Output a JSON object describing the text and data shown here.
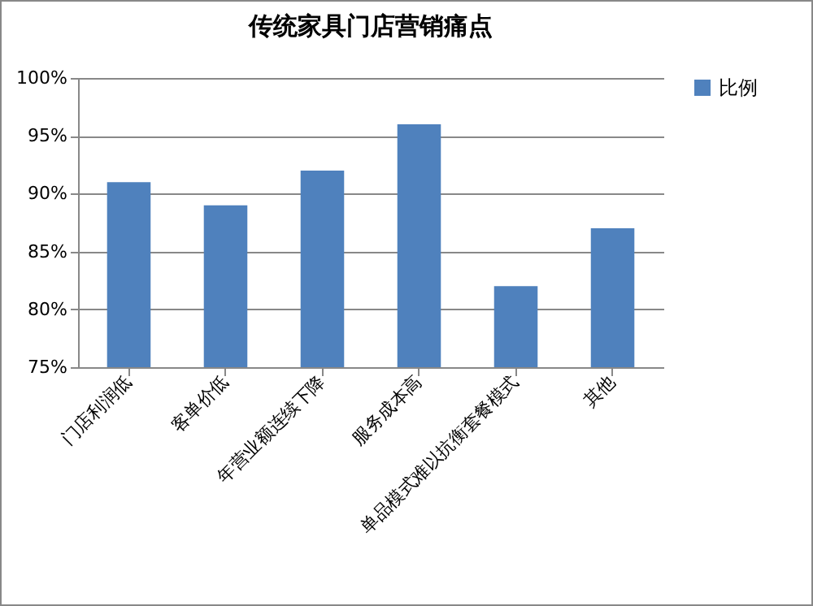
{
  "chart_data": {
    "type": "bar",
    "title": "传统家具门店营销痛点",
    "categories": [
      "门店利润低",
      "客单价低",
      "年营业额连续下降",
      "服务成本高",
      "单品模式难以抗衡套餐模式",
      "其他"
    ],
    "series": [
      {
        "name": "比例",
        "color": "#4f81bd",
        "values": [
          91,
          89,
          92,
          96,
          82,
          87
        ]
      }
    ],
    "ylim": [
      75,
      100
    ],
    "yticks": [
      {
        "value": 75,
        "label": "75%"
      },
      {
        "value": 80,
        "label": "80%"
      },
      {
        "value": 85,
        "label": "85%"
      },
      {
        "value": 90,
        "label": "90%"
      },
      {
        "value": 95,
        "label": "95%"
      },
      {
        "value": 100,
        "label": "100%"
      }
    ],
    "grid": "y",
    "legend": "right"
  }
}
